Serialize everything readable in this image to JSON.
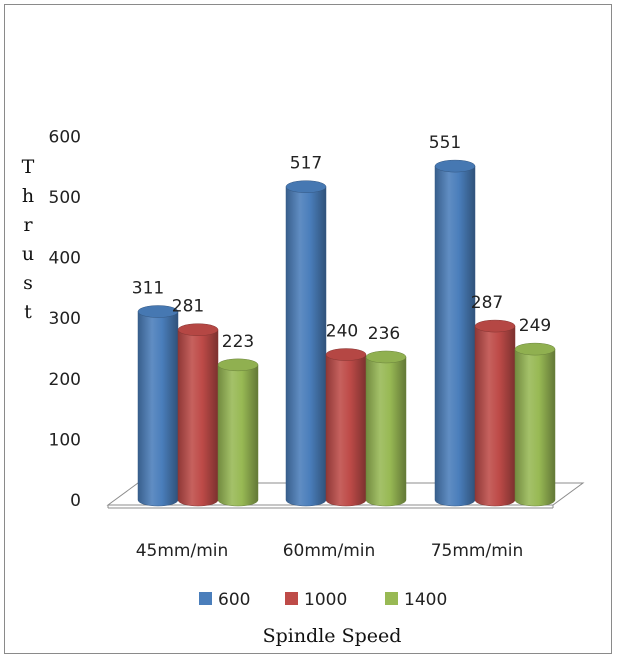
{
  "chart_data": {
    "type": "bar",
    "categories": [
      "45mm/min",
      "60mm/min",
      "75mm/min"
    ],
    "series": [
      {
        "name": "600",
        "values": [
          311,
          517,
          551
        ],
        "color": "#4A7EBB"
      },
      {
        "name": "1000",
        "values": [
          281,
          240,
          287
        ],
        "color": "#BE4B48"
      },
      {
        "name": "1400",
        "values": [
          223,
          236,
          249
        ],
        "color": "#98B954"
      }
    ],
    "title": "",
    "xlabel": "Spindle Speed",
    "ylabel": "Thrust",
    "ylim": [
      0,
      600
    ],
    "yticks": [
      0,
      100,
      200,
      300,
      400,
      500,
      600
    ],
    "grid": false,
    "legend_position": "bottom",
    "style": "3d-cylinder"
  }
}
